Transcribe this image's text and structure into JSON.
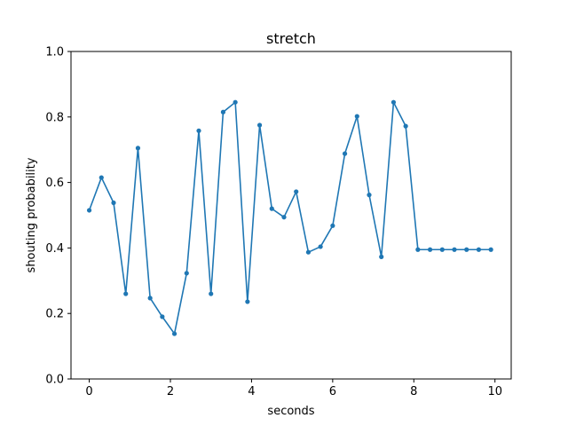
{
  "chart_data": {
    "type": "line",
    "title": "stretch",
    "xlabel": "seconds",
    "ylabel": "shouting probability",
    "xlim": [
      -0.45,
      10.4
    ],
    "ylim": [
      0.0,
      1.0
    ],
    "grid": false,
    "xticks": [
      0,
      2,
      4,
      6,
      8,
      10
    ],
    "xtick_labels": [
      "0",
      "2",
      "4",
      "6",
      "8",
      "10"
    ],
    "yticks": [
      0.0,
      0.2,
      0.4,
      0.6,
      0.8,
      1.0
    ],
    "ytick_labels": [
      "0.0",
      "0.2",
      "0.4",
      "0.6",
      "0.8",
      "1.0"
    ],
    "series": [
      {
        "color": "#1f77b4",
        "x": [
          0.0,
          0.3,
          0.6,
          0.9,
          1.2,
          1.5,
          1.8,
          2.1,
          2.4,
          2.7,
          3.0,
          3.3,
          3.6,
          3.9,
          4.2,
          4.5,
          4.8,
          5.1,
          5.4,
          5.7,
          6.0,
          6.3,
          6.6,
          6.9,
          7.2,
          7.5,
          7.8,
          8.1,
          8.4,
          8.7,
          9.0,
          9.3,
          9.6,
          9.9
        ],
        "y": [
          0.515,
          0.615,
          0.538,
          0.26,
          0.705,
          0.247,
          0.19,
          0.138,
          0.323,
          0.758,
          0.26,
          0.815,
          0.845,
          0.236,
          0.775,
          0.52,
          0.494,
          0.572,
          0.387,
          0.404,
          0.468,
          0.688,
          0.802,
          0.562,
          0.373,
          0.845,
          0.772,
          0.395,
          0.395,
          0.395,
          0.395,
          0.395,
          0.395,
          0.395
        ]
      }
    ]
  }
}
